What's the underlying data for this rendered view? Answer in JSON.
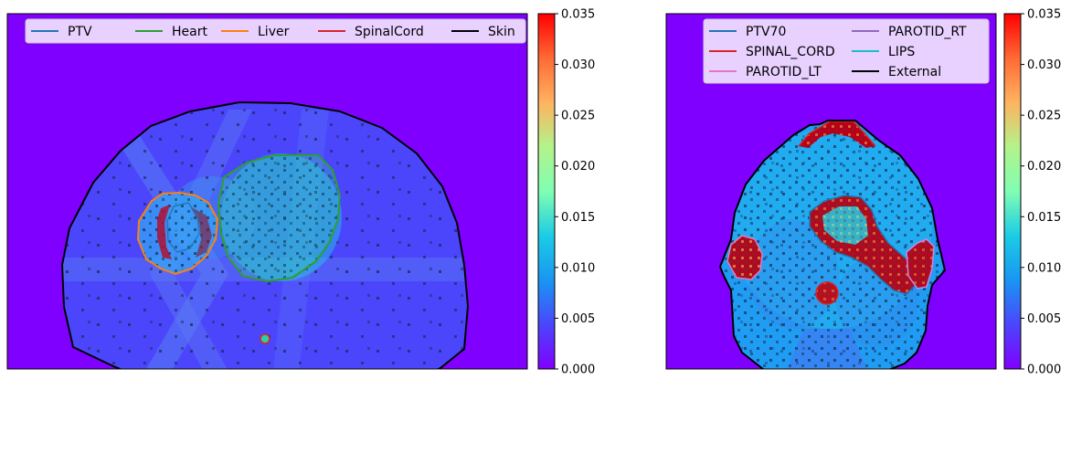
{
  "chart_data": [
    {
      "type": "heatmap",
      "title": "",
      "xlabel": "",
      "ylabel": "",
      "legend": {
        "placement": "top",
        "entries": [
          {
            "name": "PTV",
            "color": "#1f77b4"
          },
          {
            "name": "Heart",
            "color": "#2ca02c"
          },
          {
            "name": "Liver",
            "color": "#ff7f0e"
          },
          {
            "name": "SpinalCord",
            "color": "#d62728"
          },
          {
            "name": "Skin",
            "color": "#000000"
          }
        ]
      },
      "colorbar": {
        "colormap": "rainbow",
        "range": [
          0.0,
          0.035
        ],
        "ticks": [
          0.0,
          0.005,
          0.01,
          0.015,
          0.02,
          0.025,
          0.03,
          0.035
        ],
        "tick_labels": [
          "0.000",
          "0.005",
          "0.010",
          "0.015",
          "0.020",
          "0.025",
          "0.030",
          "0.035"
        ]
      }
    },
    {
      "type": "heatmap",
      "title": "",
      "xlabel": "",
      "ylabel": "",
      "legend": {
        "placement": "top",
        "columns": 2,
        "entries": [
          {
            "name": "PTV70",
            "color": "#1f77b4"
          },
          {
            "name": "SPINAL_CORD",
            "color": "#d62728"
          },
          {
            "name": "PAROTID_LT",
            "color": "#e377c2"
          },
          {
            "name": "PAROTID_RT",
            "color": "#9467bd"
          },
          {
            "name": "LIPS",
            "color": "#17becf"
          },
          {
            "name": "External",
            "color": "#000000"
          }
        ]
      },
      "colorbar": {
        "colormap": "rainbow",
        "range": [
          0.0,
          0.035
        ],
        "ticks": [
          0.0,
          0.005,
          0.01,
          0.015,
          0.02,
          0.025,
          0.03,
          0.035
        ],
        "tick_labels": [
          "0.000",
          "0.005",
          "0.010",
          "0.015",
          "0.020",
          "0.025",
          "0.030",
          "0.035"
        ]
      }
    }
  ]
}
